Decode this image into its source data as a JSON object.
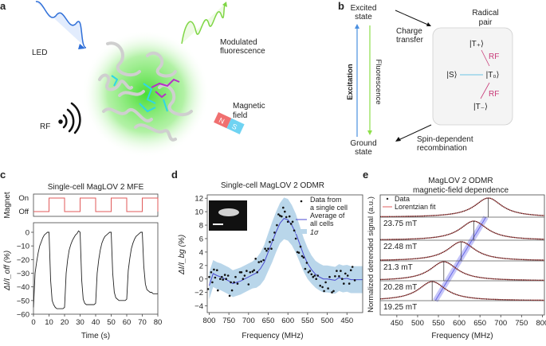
{
  "panel_labels": [
    "a",
    "b",
    "c",
    "d",
    "e"
  ],
  "panel_a": {
    "led": "LED",
    "modulated_line1": "Modulated",
    "modulated_line2": "fluorescence",
    "rf": "RF",
    "magnetic_line1": "Magnetic",
    "magnetic_line2": "field",
    "magnet_n": "N",
    "magnet_s": "S",
    "colors": {
      "led": "#2f6fd8",
      "fluorescence": "#7fd645",
      "glow": "#4ee034",
      "magnet_n": "#f07070",
      "magnet_s": "#6fd3f2"
    }
  },
  "panel_b": {
    "excited_line1": "Excited",
    "excited_line2": "state",
    "ground_line1": "Ground",
    "ground_line2": "state",
    "excitation": "Excitation",
    "fluorescence": "Fluorescence",
    "charge_line1": "Charge",
    "charge_line2": "transfer",
    "radical_line1": "Radical",
    "radical_line2": "pair",
    "t_plus": "|T₊⟩",
    "s": "|S⟩",
    "t_zero": "|T₀⟩",
    "t_minus": "|T₋⟩",
    "rf1": "RF",
    "rf2": "RF",
    "recomb_line1": "Spin-dependent",
    "recomb_line2": "recombination"
  },
  "chart_data": [
    {
      "id": "c",
      "type": "line",
      "title": "Single-cell MagLOV 2 MFE",
      "xlabel": "Time (s)",
      "ylabel": "ΔI/I_off (%)",
      "magnet_ylabel": "Magnet",
      "magnet_levels": [
        "On",
        "Off"
      ],
      "magnet_on_intervals": [
        [
          10,
          20
        ],
        [
          30,
          40
        ],
        [
          50,
          60
        ],
        [
          70,
          80
        ]
      ],
      "xlim": [
        0,
        80
      ],
      "ylim": [
        -60,
        7
      ],
      "xticks": [
        0,
        10,
        20,
        30,
        40,
        50,
        60,
        70,
        80
      ],
      "yticks": [
        0,
        -10,
        -20,
        -30,
        -40,
        -50,
        -60
      ],
      "x_step": 1,
      "values": [
        -55,
        -30,
        -22,
        -15,
        -10,
        -7,
        -4,
        -2,
        -1,
        0,
        0,
        -35,
        -50,
        -53,
        -55,
        -56,
        -56,
        -56,
        -56,
        -56,
        -55,
        -30,
        -20,
        -13,
        -9,
        -6,
        -4,
        -2,
        -1,
        1,
        0,
        -35,
        -49,
        -52,
        -53,
        -53,
        -53,
        -53,
        -53,
        -53,
        -52,
        -30,
        -20,
        -13,
        -8,
        -5,
        -3,
        -2,
        -1,
        0,
        0,
        -30,
        -44,
        -48,
        -49,
        -50,
        -50,
        -50,
        -50,
        -50,
        -49,
        -28,
        -19,
        -12,
        -8,
        -5,
        -3,
        -2,
        -1,
        0,
        0,
        -25,
        -38,
        -42,
        -43,
        -44,
        -44,
        -45,
        -45,
        -45,
        -45
      ],
      "colors": {
        "magnet": "#e05a5a",
        "trace": "#222222"
      }
    },
    {
      "id": "d",
      "type": "scatter",
      "title": "Single-cell MagLOV 2 ODMR",
      "xlabel": "Frequency (MHz)",
      "ylabel": "ΔI/I_bg (%)",
      "xlim": [
        805,
        410
      ],
      "x_reversed": true,
      "ylim": [
        -5,
        12.5
      ],
      "xticks": [
        800,
        750,
        700,
        650,
        600,
        550,
        500,
        450
      ],
      "yticks": [
        12,
        10,
        8,
        6,
        4,
        2,
        0,
        -2,
        -4
      ],
      "legend": [
        "Data from",
        "a single cell",
        "Average of",
        "all cells",
        "1σ"
      ],
      "legend_placement": "top-right",
      "average": {
        "x": [
          800,
          790,
          780,
          770,
          760,
          750,
          740,
          730,
          720,
          710,
          700,
          690,
          680,
          670,
          660,
          650,
          640,
          630,
          620,
          610,
          600,
          590,
          580,
          570,
          560,
          550,
          540,
          530,
          520,
          510,
          500,
          490,
          480,
          470,
          460,
          450,
          440,
          430,
          420,
          410
        ],
        "y": [
          -1,
          0.8,
          0.5,
          0.3,
          0,
          -0.3,
          -0.7,
          -0.5,
          -0.3,
          0,
          0.3,
          0.6,
          0.9,
          1.5,
          2.5,
          4,
          5.5,
          7,
          8.3,
          9,
          8.8,
          8,
          6.8,
          5.2,
          3.6,
          2.3,
          1.4,
          0.7,
          0.3,
          0,
          0,
          -0.1,
          -0.2,
          0.2,
          0,
          0.1,
          -0.1,
          -0.1,
          -0.1,
          -0.1
        ],
        "sigma": [
          2,
          2,
          2,
          2,
          2,
          2,
          2,
          2,
          2,
          2,
          2,
          2,
          2.2,
          2.4,
          2.6,
          2.8,
          3,
          3,
          3,
          3.1,
          3.1,
          3,
          2.9,
          2.7,
          2.5,
          2.3,
          2.1,
          2,
          2,
          2,
          2,
          2,
          2,
          2,
          2,
          2,
          2,
          2,
          2,
          2
        ]
      },
      "points": [
        [
          803,
          -1.5
        ],
        [
          800,
          0.3
        ],
        [
          795,
          1
        ],
        [
          792,
          -0.5
        ],
        [
          788,
          1.4
        ],
        [
          785,
          0.2
        ],
        [
          780,
          1.3
        ],
        [
          778,
          -1.7
        ],
        [
          772,
          0
        ],
        [
          768,
          0.3
        ],
        [
          765,
          -0.1
        ],
        [
          760,
          0.6
        ],
        [
          757,
          0
        ],
        [
          752,
          0.5
        ],
        [
          748,
          -2.5
        ],
        [
          745,
          -0.5
        ],
        [
          742,
          -1.7
        ],
        [
          737,
          -0.5
        ],
        [
          733,
          0.3
        ],
        [
          728,
          -0.7
        ],
        [
          722,
          1
        ],
        [
          718,
          1
        ],
        [
          714,
          0
        ],
        [
          710,
          0.5
        ],
        [
          705,
          1.2
        ],
        [
          700,
          -0.8
        ],
        [
          696,
          1
        ],
        [
          690,
          1.1
        ],
        [
          686,
          1.3
        ],
        [
          682,
          3
        ],
        [
          678,
          1
        ],
        [
          674,
          2.5
        ],
        [
          668,
          2.6
        ],
        [
          662,
          2.8
        ],
        [
          658,
          4.5
        ],
        [
          654,
          4.2
        ],
        [
          650,
          4.5
        ],
        [
          646,
          5.5
        ],
        [
          642,
          4.5
        ],
        [
          638,
          5.8
        ],
        [
          634,
          6.9
        ],
        [
          628,
          8
        ],
        [
          624,
          9.6
        ],
        [
          620,
          9.4
        ],
        [
          616,
          9.3
        ],
        [
          612,
          10.6
        ],
        [
          608,
          10
        ],
        [
          604,
          9.2
        ],
        [
          600,
          8.5
        ],
        [
          596,
          9.3
        ],
        [
          592,
          8.2
        ],
        [
          588,
          8.5
        ],
        [
          584,
          7.2
        ],
        [
          580,
          6
        ],
        [
          576,
          4
        ],
        [
          572,
          3.9
        ],
        [
          568,
          4.8
        ],
        [
          564,
          3.4
        ],
        [
          560,
          3.2
        ],
        [
          556,
          1.5
        ],
        [
          552,
          2.4
        ],
        [
          548,
          1
        ],
        [
          544,
          1.2
        ],
        [
          540,
          0.7
        ],
        [
          536,
          0.3
        ],
        [
          532,
          0.5
        ],
        [
          528,
          0
        ],
        [
          524,
          0.5
        ],
        [
          518,
          -1
        ],
        [
          512,
          -1.2
        ],
        [
          508,
          -1.8
        ],
        [
          504,
          -0.5
        ],
        [
          498,
          -1.4
        ],
        [
          494,
          0.3
        ],
        [
          488,
          -2
        ],
        [
          484,
          -1.8
        ],
        [
          480,
          0.4
        ],
        [
          476,
          1.2
        ],
        [
          470,
          0.4
        ],
        [
          466,
          1.2
        ],
        [
          462,
          0
        ],
        [
          458,
          -0.7
        ],
        [
          454,
          0.8
        ],
        [
          448,
          0.5
        ],
        [
          444,
          -0.7
        ],
        [
          440,
          1.3
        ],
        [
          436,
          1.8
        ],
        [
          430,
          -0.2
        ]
      ],
      "colors": {
        "average": "#4a4ad0",
        "sigma": "#b9d6ea",
        "points": "#111111"
      }
    },
    {
      "id": "e",
      "type": "line",
      "title_line1": "MagLOV 2 ODMR",
      "title_line2": "magnetic-field dependence",
      "xlabel": "Frequency (MHz)",
      "ylabel": "Normalized detrended signal (a.u.)",
      "xlim": [
        410,
        805
      ],
      "xticks": [
        450,
        500,
        550,
        600,
        650,
        700,
        750,
        800
      ],
      "legend": [
        "Data",
        "Lorentzian fit"
      ],
      "legend_placement": "top-left",
      "series": [
        {
          "name": "23.75 mT",
          "peak_mhz": 670
        },
        {
          "name": "22.48 mT",
          "peak_mhz": 635
        },
        {
          "name": "21.3 mT",
          "peak_mhz": 605
        },
        {
          "name": "20.28 mT",
          "peak_mhz": 563
        },
        {
          "name": "19.25 mT",
          "peak_mhz": 535
        }
      ],
      "colors": {
        "data": "#222222",
        "fit": "#e06060",
        "trend": "#5a5ae8",
        "trend_band": "#9fa0f5"
      }
    }
  ]
}
